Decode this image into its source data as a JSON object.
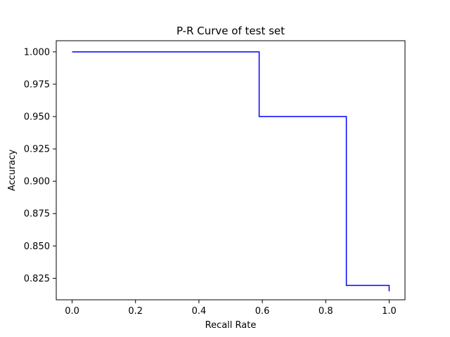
{
  "chart_data": {
    "type": "line",
    "title": "P-R Curve of test set",
    "xlabel": "Recall Rate",
    "ylabel": "Accuracy",
    "xlim": [
      -0.05,
      1.05
    ],
    "ylim": [
      0.8084,
      1.0086
    ],
    "xticks": [
      0.0,
      0.2,
      0.4,
      0.6,
      0.8,
      1.0
    ],
    "xtick_labels": [
      "0.0",
      "0.2",
      "0.4",
      "0.6",
      "0.8",
      "1.0"
    ],
    "yticks": [
      0.825,
      0.85,
      0.875,
      0.9,
      0.925,
      0.95,
      0.975,
      1.0
    ],
    "ytick_labels": [
      "0.825",
      "0.850",
      "0.875",
      "0.900",
      "0.925",
      "0.950",
      "0.975",
      "1.000"
    ],
    "grid": false,
    "series": [
      {
        "color": "#0000ff",
        "x": [
          0.0,
          0.59,
          0.59,
          0.865,
          0.865,
          1.0,
          1.0
        ],
        "y": [
          1.0,
          1.0,
          0.95,
          0.95,
          0.8195,
          0.8195,
          0.815
        ]
      }
    ]
  }
}
